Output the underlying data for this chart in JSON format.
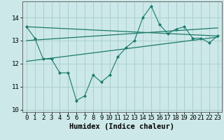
{
  "xlabel": "Humidex (Indice chaleur)",
  "x": [
    0,
    1,
    2,
    3,
    4,
    5,
    6,
    7,
    8,
    9,
    10,
    11,
    12,
    13,
    14,
    15,
    16,
    17,
    18,
    19,
    20,
    21,
    22,
    23
  ],
  "line1": [
    13.6,
    13.1,
    12.2,
    12.2,
    11.6,
    11.6,
    10.4,
    10.6,
    11.5,
    11.2,
    11.5,
    12.3,
    12.7,
    13.0,
    14.0,
    14.5,
    13.7,
    13.3,
    13.5,
    13.6,
    13.1,
    13.1,
    12.9,
    13.2
  ],
  "trend1_x": [
    0,
    23
  ],
  "trend1_y": [
    13.6,
    13.2
  ],
  "trend2_x": [
    0,
    23
  ],
  "trend2_y": [
    12.1,
    13.15
  ],
  "trend3_x": [
    0,
    23
  ],
  "trend3_y": [
    13.0,
    13.55
  ],
  "line_color": "#1a7a6a",
  "bg_color": "#cce8e8",
  "grid_color": "#a8cccc",
  "ylim": [
    9.9,
    14.7
  ],
  "xlim": [
    -0.5,
    23.5
  ],
  "yticks": [
    10,
    11,
    12,
    13,
    14
  ],
  "xticks": [
    0,
    1,
    2,
    3,
    4,
    5,
    6,
    7,
    8,
    9,
    10,
    11,
    12,
    13,
    14,
    15,
    16,
    17,
    18,
    19,
    20,
    21,
    22,
    23
  ],
  "tick_fontsize": 6.5,
  "xlabel_fontsize": 7.5
}
